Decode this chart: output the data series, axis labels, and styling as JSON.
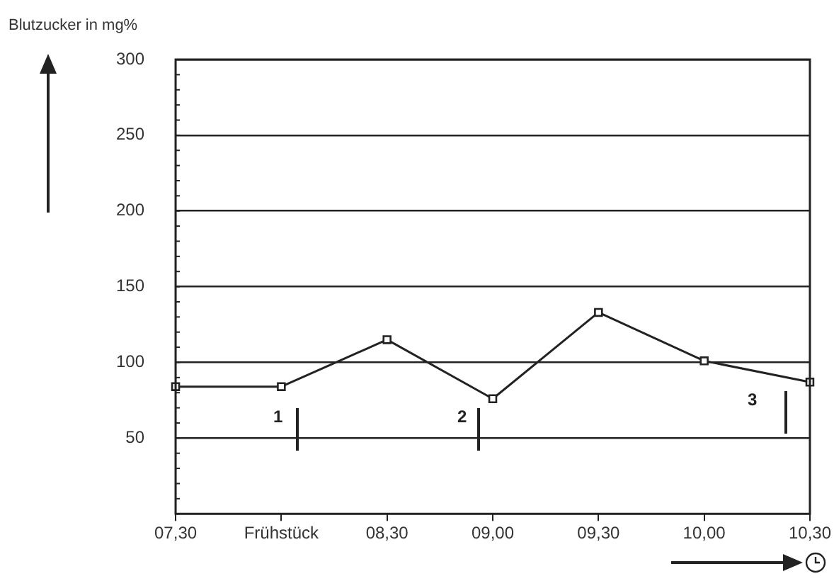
{
  "chart_data": {
    "type": "line",
    "ylabel": "Blutzucker in mg%",
    "categories": [
      "07,30",
      "Frühstück",
      "08,30",
      "09,00",
      "09,30",
      "10,00",
      "10,30"
    ],
    "series": [
      {
        "color": "#222222",
        "values": [
          84,
          84,
          115,
          76,
          133,
          101,
          87
        ]
      }
    ],
    "ylim": [
      0,
      300
    ],
    "yticks": [
      50,
      100,
      150,
      200,
      250,
      300
    ],
    "grid": "y",
    "legend": false,
    "marker": "square",
    "line_style": "solid",
    "annotations": [
      "1",
      "2",
      "3"
    ]
  }
}
